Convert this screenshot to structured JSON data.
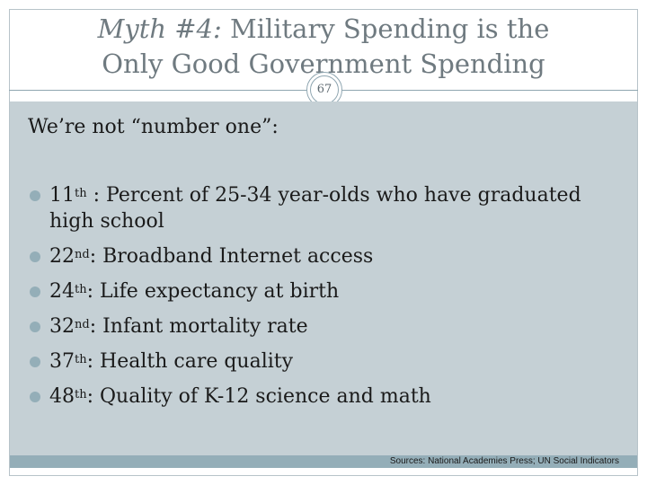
{
  "slide": {
    "title_italic": "Myth #4:",
    "title_rest": " Military Spending is the",
    "title_line2": "Only Good Government Spending",
    "slide_number": "67",
    "subheading": "We’re not “number one”:",
    "bullets": [
      {
        "rank": "11",
        "suffix": "th",
        "text": " : Percent of 25-34 year-olds who have graduated high school"
      },
      {
        "rank": "22",
        "suffix": "nd",
        "text": ": Broadband Internet access"
      },
      {
        "rank": "24",
        "suffix": "th",
        "text": ":  Life expectancy at birth"
      },
      {
        "rank": "32",
        "suffix": "nd",
        "text": ":  Infant mortality rate"
      },
      {
        "rank": "37",
        "suffix": "th",
        "text": ":  Health care quality"
      },
      {
        "rank": "48",
        "suffix": "th",
        "text": ": Quality of K-12 science and math"
      }
    ],
    "sources": "Sources:  National Academies Press; UN Social Indicators"
  },
  "colors": {
    "content_bg": "#c5d0d5",
    "accent": "#94aeb8",
    "title_text": "#6f7a80"
  }
}
